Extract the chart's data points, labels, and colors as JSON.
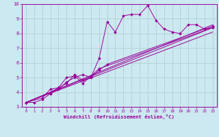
{
  "xlabel": "Windchill (Refroidissement éolien,°C)",
  "bg_color": "#cce8f0",
  "line_color": "#990099",
  "grid_color": "#aacccc",
  "xlim": [
    -0.5,
    23.5
  ],
  "ylim": [
    3,
    10
  ],
  "xticks": [
    0,
    1,
    2,
    3,
    4,
    5,
    6,
    7,
    8,
    9,
    10,
    11,
    12,
    13,
    14,
    15,
    16,
    17,
    18,
    19,
    20,
    21,
    22,
    23
  ],
  "yticks": [
    3,
    4,
    5,
    6,
    7,
    8,
    9,
    10
  ],
  "series1": [
    [
      0,
      3.3
    ],
    [
      1,
      3.3
    ],
    [
      2,
      3.5
    ],
    [
      3,
      3.9
    ],
    [
      4,
      4.2
    ],
    [
      5,
      4.7
    ],
    [
      6,
      5.0
    ],
    [
      7,
      5.2
    ],
    [
      8,
      5.0
    ],
    [
      9,
      6.3
    ],
    [
      10,
      8.8
    ],
    [
      11,
      8.1
    ],
    [
      12,
      9.2
    ],
    [
      13,
      9.3
    ],
    [
      14,
      9.3
    ],
    [
      15,
      9.9
    ],
    [
      16,
      8.9
    ],
    [
      17,
      8.3
    ],
    [
      18,
      8.1
    ],
    [
      19,
      8.0
    ],
    [
      20,
      8.6
    ],
    [
      21,
      8.6
    ],
    [
      22,
      8.3
    ],
    [
      23,
      8.4
    ]
  ],
  "series2": [
    [
      0,
      3.3
    ],
    [
      2,
      3.6
    ],
    [
      3,
      4.2
    ],
    [
      4,
      4.3
    ],
    [
      5,
      4.6
    ],
    [
      6,
      5.2
    ],
    [
      7,
      4.8
    ],
    [
      8,
      5.0
    ],
    [
      9,
      5.5
    ],
    [
      10,
      5.9
    ],
    [
      23,
      8.5
    ]
  ],
  "series3": [
    [
      0,
      3.3
    ],
    [
      3,
      4.0
    ],
    [
      4,
      4.3
    ],
    [
      5,
      5.0
    ],
    [
      6,
      5.1
    ],
    [
      7,
      4.6
    ],
    [
      8,
      5.1
    ],
    [
      9,
      5.6
    ],
    [
      23,
      8.4
    ]
  ],
  "line_straight1": [
    [
      0,
      3.3
    ],
    [
      23,
      8.1
    ]
  ],
  "line_straight2": [
    [
      0,
      3.3
    ],
    [
      23,
      8.4
    ]
  ],
  "line_straight3": [
    [
      0,
      3.3
    ],
    [
      23,
      8.6
    ]
  ]
}
